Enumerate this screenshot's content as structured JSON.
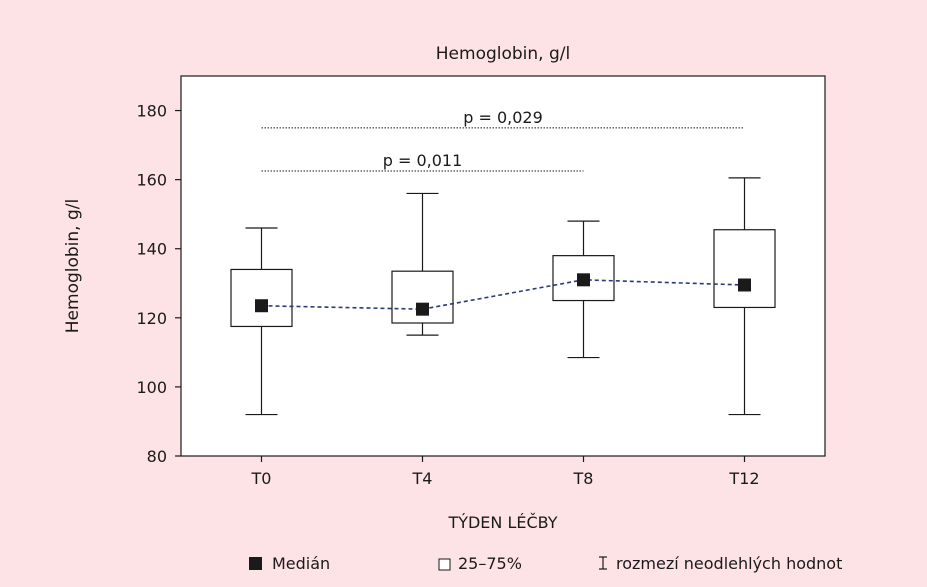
{
  "chart_data": {
    "type": "boxplot",
    "title": "Hemoglobin, g/l",
    "xlabel": "TÝDEN LÉČBY",
    "ylabel": "Hemoglobin, g/l",
    "ylim": [
      80,
      190
    ],
    "yticks": [
      80,
      100,
      120,
      140,
      160,
      180
    ],
    "grid": false,
    "categories": [
      "T0",
      "T4",
      "T8",
      "T12"
    ],
    "median": [
      123.5,
      122.5,
      131,
      129.5
    ],
    "q1": [
      117.5,
      118.5,
      125,
      123
    ],
    "q3": [
      134,
      133.5,
      138,
      145.5
    ],
    "whisker_low": [
      92,
      115,
      108.5,
      92
    ],
    "whisker_high": [
      146,
      156,
      148,
      160.5
    ],
    "median_line": "dashed",
    "annotations": [
      {
        "text": "p = 0,029",
        "from": "T0",
        "to": "T12",
        "y": 175
      },
      {
        "text": "p = 0,011",
        "from": "T0",
        "to": "T8",
        "y": 162.5
      }
    ],
    "legend": {
      "placement": "bottom",
      "items": [
        {
          "symbol": "filled-square",
          "label": "Medián"
        },
        {
          "symbol": "open-square",
          "label": "25–75%"
        },
        {
          "symbol": "whisker-bar",
          "label": "rozmezí neodlehlých hodnot"
        }
      ]
    },
    "colors": {
      "background": "#fde2e6",
      "plot_background": "#ffffff",
      "median_line": "#2b3a7a",
      "ink": "#1a1a1a"
    }
  }
}
